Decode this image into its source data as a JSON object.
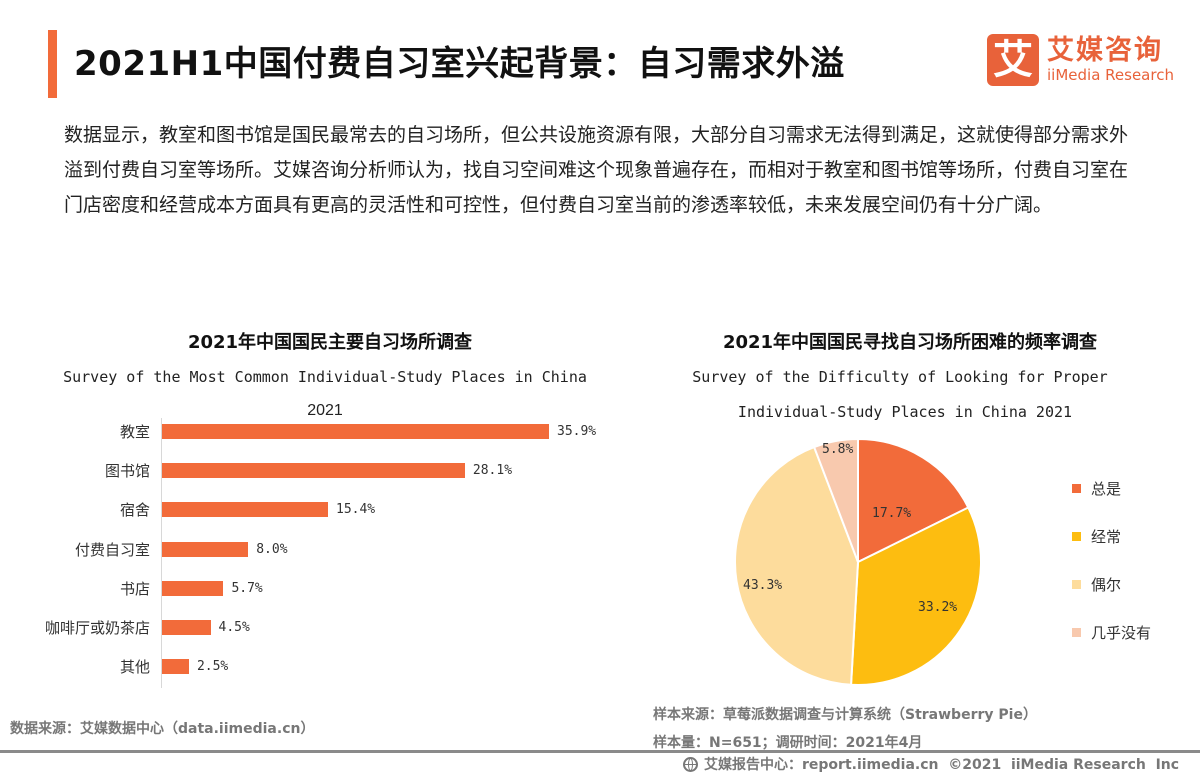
{
  "header": {
    "title": "2021H1中国付费自习室兴起背景：自习需求外溢",
    "accent_color": "#F26B3A"
  },
  "logo": {
    "mark": "艾",
    "cn": "艾媒咨询",
    "en": "iiMedia Research",
    "color": "#E8623A"
  },
  "intro": "数据显示，教室和图书馆是国民最常去的自习场所，但公共设施资源有限，大部分自习需求无法得到满足，这就使得部分需求外溢到付费自习室等场所。艾媒咨询分析师认为，找自习空间难这个现象普遍存在，而相对于教室和图书馆等场所，付费自习室在门店密度和经营成本方面具有更高的灵活性和可控性，但付费自习室当前的渗透率较低，未来发展空间仍有十分广阔。",
  "chart_data": [
    {
      "type": "bar",
      "orientation": "horizontal",
      "title": "2021年中国国民主要自习场所调查",
      "subtitle": "Survey of the Most Common Individual-Study Places in China",
      "series_label": "2021",
      "categories": [
        "教室",
        "图书馆",
        "宿舍",
        "付费自习室",
        "书店",
        "咖啡厅或奶茶店",
        "其他"
      ],
      "values": [
        35.9,
        28.1,
        15.4,
        8.0,
        5.7,
        4.5,
        2.5
      ],
      "value_labels": [
        "35.9%",
        "28.1%",
        "15.4%",
        "8.0%",
        "5.7%",
        "4.5%",
        "2.5%"
      ],
      "unit": "%",
      "color": "#F26B3A",
      "xlabel": "",
      "ylabel": "",
      "grid": false
    },
    {
      "type": "pie",
      "title": "2021年中国国民寻找自习场所困难的频率调查",
      "subtitle_line1": "Survey of the Difficulty of Looking for Proper",
      "subtitle_line2": "Individual-Study Places in China 2021",
      "categories": [
        "总是",
        "经常",
        "偶尔",
        "几乎没有"
      ],
      "values": [
        17.7,
        33.2,
        43.3,
        5.8
      ],
      "value_labels": [
        "17.7%",
        "33.2%",
        "43.3%",
        "5.8%"
      ],
      "colors": [
        "#F26B3A",
        "#FDBD10",
        "#FDDC9C",
        "#F8C9AE"
      ],
      "legend_position": "right",
      "start_angle": "12 o'clock, clockwise"
    }
  ],
  "sources": {
    "left": "数据来源：艾媒数据中心（data.iimedia.cn）",
    "right_line1": "样本来源：草莓派数据调查与计算系统（Strawberry Pie）",
    "right_line2": "样本量：N=651；调研时间：2021年4月"
  },
  "footer": {
    "text": "艾媒报告中心：report.iimedia.cn  ©2021  iiMedia Research  Inc"
  }
}
